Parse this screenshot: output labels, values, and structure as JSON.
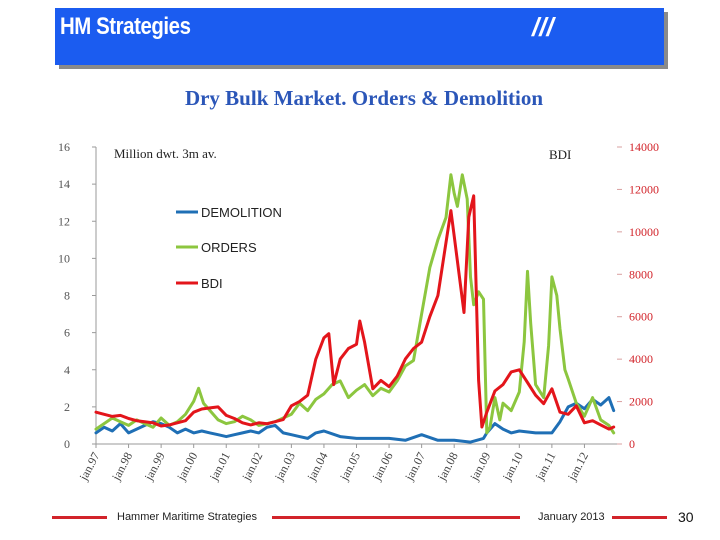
{
  "header": {
    "title": "HM Strategies",
    "mark": "///",
    "colors": {
      "background": "#1b5cf0",
      "shadow": "#8a8a8a",
      "text": "#ffffff"
    }
  },
  "footer": {
    "left_text": "Hammer Maritime Strategies",
    "right_text": "January 2013",
    "page_number": "30",
    "line_color": "#d2232a"
  },
  "chart_data": {
    "type": "line",
    "title": "Dry Bulk Market. Orders & Demolition",
    "left_axis_label": "Million dwt. 3m av.",
    "right_axis_label": "BDI",
    "left_ylim": [
      0,
      16
    ],
    "left_ticks": [
      "0",
      "2",
      "4",
      "6",
      "8",
      "10",
      "12",
      "14",
      "16"
    ],
    "right_ylim": [
      0,
      14000
    ],
    "right_ticks": [
      "0",
      "2000",
      "4000",
      "6000",
      "8000",
      "10000",
      "12000",
      "14000"
    ],
    "x_labels": [
      "jan.97",
      "jan.98",
      "jan.99",
      "jan.00",
      "jan.01",
      "jan.02",
      "jan.03",
      "jan.04",
      "jan.05",
      "jan.06",
      "jan.07",
      "jan.08",
      "jan.09",
      "jan.10",
      "jan.11",
      "jan.12"
    ],
    "xlim": [
      1997,
      2013
    ],
    "grid": false,
    "legend_position": "upper-left",
    "series": [
      {
        "name": "DEMOLITION",
        "axis": "left",
        "color": "#1f6fb5",
        "x": [
          1997.0,
          1997.25,
          1997.5,
          1997.75,
          1998.0,
          1998.25,
          1998.5,
          1998.75,
          1999.0,
          1999.25,
          1999.5,
          1999.75,
          2000.0,
          2000.25,
          2000.5,
          2000.75,
          2001.0,
          2001.25,
          2001.5,
          2001.75,
          2002.0,
          2002.25,
          2002.5,
          2002.75,
          2003.0,
          2003.25,
          2003.5,
          2003.75,
          2004.0,
          2004.5,
          2005.0,
          2005.5,
          2006.0,
          2006.5,
          2007.0,
          2007.5,
          2008.0,
          2008.5,
          2008.9,
          2009.0,
          2009.25,
          2009.5,
          2009.75,
          2010.0,
          2010.5,
          2011.0,
          2011.25,
          2011.5,
          2011.75,
          2012.0,
          2012.25,
          2012.5,
          2012.75,
          2012.9
        ],
        "values": [
          0.6,
          0.9,
          0.7,
          1.1,
          0.6,
          0.8,
          1.0,
          1.2,
          1.1,
          0.9,
          0.6,
          0.8,
          0.6,
          0.7,
          0.6,
          0.5,
          0.4,
          0.5,
          0.6,
          0.7,
          0.6,
          0.9,
          1.0,
          0.6,
          0.5,
          0.4,
          0.3,
          0.6,
          0.7,
          0.4,
          0.3,
          0.3,
          0.3,
          0.2,
          0.5,
          0.2,
          0.2,
          0.1,
          0.3,
          0.6,
          1.1,
          0.8,
          0.6,
          0.7,
          0.6,
          0.6,
          1.2,
          2.0,
          2.2,
          1.9,
          2.4,
          2.1,
          2.5,
          1.8
        ]
      },
      {
        "name": "ORDERS",
        "axis": "left",
        "color": "#8cc63f",
        "x": [
          1997.0,
          1997.25,
          1997.5,
          1997.75,
          1998.0,
          1998.25,
          1998.5,
          1998.75,
          1999.0,
          1999.25,
          1999.5,
          1999.75,
          2000.0,
          2000.15,
          2000.3,
          2000.5,
          2000.75,
          2001.0,
          2001.25,
          2001.5,
          2001.75,
          2002.0,
          2002.25,
          2002.5,
          2002.75,
          2003.0,
          2003.25,
          2003.5,
          2003.75,
          2004.0,
          2004.25,
          2004.5,
          2004.75,
          2005.0,
          2005.25,
          2005.5,
          2005.75,
          2006.0,
          2006.25,
          2006.5,
          2006.75,
          2007.0,
          2007.25,
          2007.5,
          2007.75,
          2007.9,
          2008.0,
          2008.1,
          2008.25,
          2008.4,
          2008.5,
          2008.6,
          2008.75,
          2008.9,
          2009.0,
          2009.1,
          2009.25,
          2009.4,
          2009.5,
          2009.75,
          2010.0,
          2010.15,
          2010.25,
          2010.35,
          2010.5,
          2010.75,
          2010.9,
          2011.0,
          2011.15,
          2011.25,
          2011.4,
          2011.5,
          2011.75,
          2012.0,
          2012.25,
          2012.5,
          2012.75,
          2012.9
        ],
        "values": [
          0.8,
          1.1,
          1.4,
          1.2,
          1.0,
          1.3,
          1.1,
          0.9,
          1.4,
          1.0,
          1.2,
          1.6,
          2.3,
          3.0,
          2.2,
          1.8,
          1.3,
          1.1,
          1.2,
          1.5,
          1.3,
          1.0,
          1.1,
          1.2,
          1.4,
          1.6,
          2.2,
          1.8,
          2.4,
          2.7,
          3.2,
          3.4,
          2.5,
          2.9,
          3.2,
          2.6,
          3.0,
          2.8,
          3.4,
          4.2,
          4.5,
          7.0,
          9.5,
          11.0,
          12.2,
          14.5,
          13.5,
          12.8,
          14.5,
          13.2,
          9.0,
          7.5,
          8.2,
          7.8,
          0.6,
          0.9,
          2.5,
          1.3,
          2.2,
          1.8,
          2.8,
          5.5,
          9.3,
          6.5,
          3.2,
          2.5,
          5.3,
          9.0,
          8.0,
          6.2,
          4.0,
          3.5,
          2.2,
          1.5,
          2.5,
          1.3,
          1.0,
          0.6
        ]
      },
      {
        "name": "BDI",
        "axis": "right",
        "color": "#e3151b",
        "x": [
          1997.0,
          1997.25,
          1997.5,
          1997.75,
          1998.0,
          1998.25,
          1998.5,
          1998.75,
          1999.0,
          1999.25,
          1999.5,
          1999.75,
          2000.0,
          2000.25,
          2000.5,
          2000.75,
          2001.0,
          2001.25,
          2001.5,
          2001.75,
          2002.0,
          2002.25,
          2002.5,
          2002.75,
          2003.0,
          2003.25,
          2003.5,
          2003.75,
          2004.0,
          2004.15,
          2004.3,
          2004.5,
          2004.75,
          2005.0,
          2005.1,
          2005.25,
          2005.5,
          2005.75,
          2006.0,
          2006.25,
          2006.5,
          2006.75,
          2007.0,
          2007.25,
          2007.5,
          2007.75,
          2007.9,
          2008.0,
          2008.15,
          2008.3,
          2008.45,
          2008.6,
          2008.75,
          2008.85,
          2009.0,
          2009.25,
          2009.5,
          2009.75,
          2010.0,
          2010.25,
          2010.5,
          2010.75,
          2011.0,
          2011.25,
          2011.5,
          2011.75,
          2012.0,
          2012.25,
          2012.5,
          2012.75,
          2012.9
        ],
        "values": [
          1500,
          1400,
          1300,
          1350,
          1200,
          1100,
          1050,
          1000,
          850,
          900,
          1000,
          1100,
          1500,
          1650,
          1700,
          1750,
          1350,
          1200,
          1000,
          900,
          1000,
          950,
          1050,
          1150,
          1800,
          2000,
          2300,
          4000,
          5000,
          5200,
          2800,
          4000,
          4500,
          4700,
          5800,
          4800,
          2600,
          3000,
          2700,
          3200,
          4000,
          4500,
          4800,
          6000,
          7000,
          9500,
          11000,
          9800,
          8000,
          6200,
          10700,
          11700,
          3000,
          800,
          1500,
          2500,
          2800,
          3400,
          3500,
          2900,
          2300,
          1900,
          2600,
          1500,
          1400,
          1800,
          1000,
          1100,
          900,
          700,
          800
        ]
      }
    ]
  }
}
